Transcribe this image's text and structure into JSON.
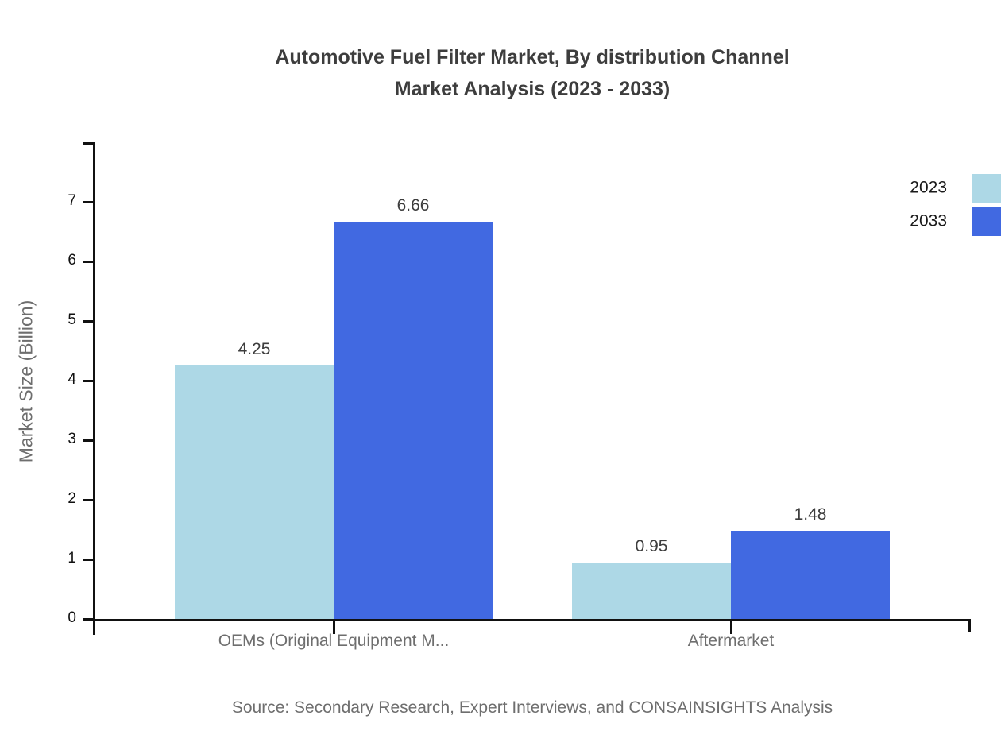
{
  "title": {
    "line1": "Automotive Fuel Filter Market, By distribution Channel",
    "line2": "Market Analysis (2023 - 2033)"
  },
  "legend": {
    "items": [
      {
        "label": "2023",
        "color": "#ADD8E6"
      },
      {
        "label": "2033",
        "color": "#4169E1"
      }
    ]
  },
  "axes": {
    "y_title": "Market Size (Billion)"
  },
  "footer": {
    "source": "Source: Secondary Research, Expert Interviews, and CONSAINSIGHTS Analysis"
  },
  "chart_data": {
    "type": "bar",
    "title": "Automotive Fuel Filter Market, By distribution Channel Market Analysis (2023 - 2033)",
    "categories": [
      "OEMs (Original Equipment M...",
      "Aftermarket"
    ],
    "series": [
      {
        "name": "2023",
        "color": "#ADD8E6",
        "values": [
          4.25,
          0.95
        ]
      },
      {
        "name": "2033",
        "color": "#4169E1",
        "values": [
          6.66,
          1.48
        ]
      }
    ],
    "xlabel": "",
    "ylabel": "Market Size (Billion)",
    "ylim": [
      0,
      8
    ],
    "yticks": [
      0,
      1,
      2,
      3,
      4,
      5,
      6,
      7
    ],
    "grid": false,
    "legend_position": "top-right",
    "value_labels": true
  }
}
